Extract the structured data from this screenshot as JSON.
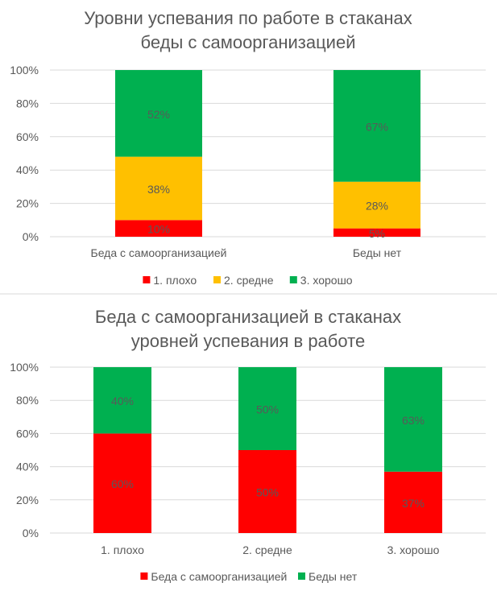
{
  "colors": {
    "1. плохо": "#FF0000",
    "2. средне": "#FFC000",
    "3. хорошо": "#00B050",
    "Беда с самоорганизацией": "#FF0000",
    "Беды нет": "#00B050",
    "text": "#595959",
    "grid": "#D9D9D9"
  },
  "chart_data": [
    {
      "type": "bar",
      "stacked": "percent",
      "title": [
        "Уровни успевания по работе в стаканах",
        "беды с самоорганизацией"
      ],
      "categories": [
        "Беда с самоорганизацией",
        "Беды нет"
      ],
      "series": [
        {
          "name": "1. плохо",
          "values": [
            10,
            5
          ],
          "labels": [
            "10%",
            "5%"
          ]
        },
        {
          "name": "2. средне",
          "values": [
            38,
            28
          ],
          "labels": [
            "38%",
            "28%"
          ]
        },
        {
          "name": "3. хорошо",
          "values": [
            52,
            67
          ],
          "labels": [
            "52%",
            "67%"
          ]
        }
      ],
      "yticks": [
        "0%",
        "20%",
        "40%",
        "60%",
        "80%",
        "100%"
      ],
      "ylim": [
        0,
        100
      ],
      "grid": true,
      "legend": "bottom"
    },
    {
      "type": "bar",
      "stacked": "percent",
      "title": [
        "Беда с самоорганизацией в стаканах",
        "уровней успевания в работе"
      ],
      "categories": [
        "1. плохо",
        "2. средне",
        "3. хорошо"
      ],
      "series": [
        {
          "name": "Беда с самоорганизацией",
          "values": [
            60,
            50,
            37
          ],
          "labels": [
            "60%",
            "50%",
            "37%"
          ]
        },
        {
          "name": "Беды нет",
          "values": [
            40,
            50,
            63
          ],
          "labels": [
            "40%",
            "50%",
            "63%"
          ]
        }
      ],
      "yticks": [
        "0%",
        "20%",
        "40%",
        "60%",
        "80%",
        "100%"
      ],
      "ylim": [
        0,
        100
      ],
      "grid": true,
      "legend": "bottom"
    }
  ]
}
